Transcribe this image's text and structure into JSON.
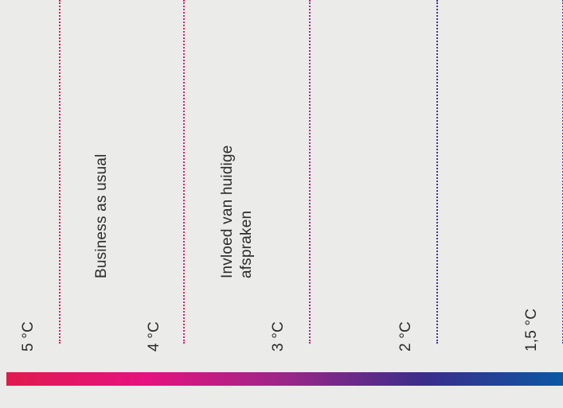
{
  "temperature_markers": [
    {
      "label": "5 °C",
      "color": "#d81b5e"
    },
    {
      "label": "4 °C",
      "color": "#e01c6a"
    },
    {
      "label": "3 °C",
      "color": "#b02483"
    },
    {
      "label": "2 °C",
      "color": "#4a2e8e"
    },
    {
      "label": "1,5 °C",
      "color": "#2a4fa0"
    }
  ],
  "scenarios": {
    "business_as_usual": "Business as usual",
    "current_agreements_line1": "Invloed van huidige",
    "current_agreements_line2": "afspraken"
  },
  "gradient": [
    "#e01a4f",
    "#e6127f",
    "#9b2688",
    "#3b2d8a",
    "#0b57a4"
  ]
}
